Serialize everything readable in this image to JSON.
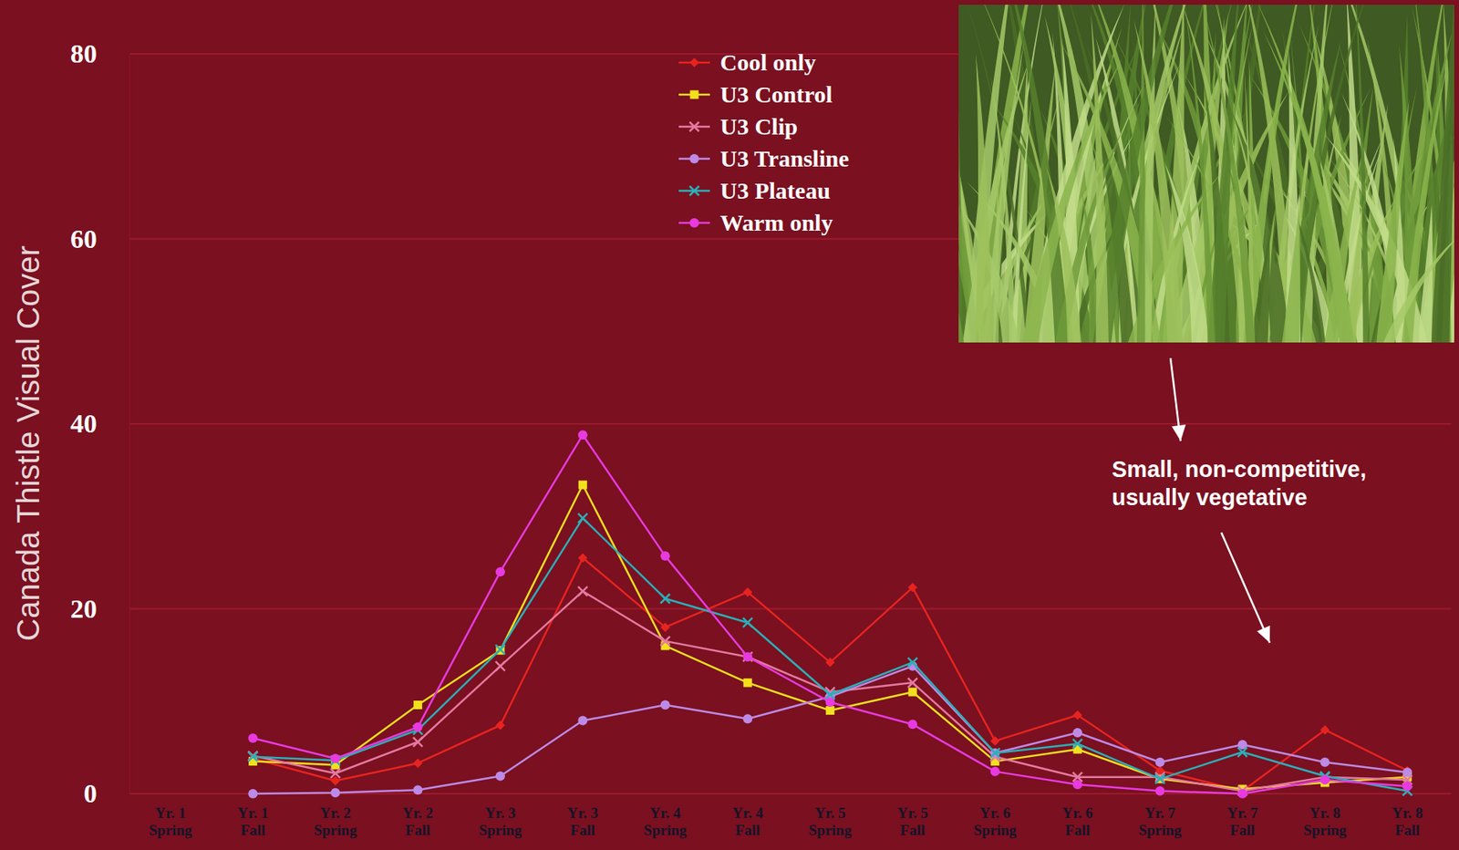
{
  "chart_data": {
    "type": "line",
    "y_label": "Canada Thistle Visual Cover",
    "annotation": "Small, non-competitive, usually vegetative",
    "categories": [
      "Yr. 1 Spring",
      "Yr. 1 Fall",
      "Yr. 2 Spring",
      "Yr. 2 Fall",
      "Yr. 3 Spring",
      "Yr. 3 Fall",
      "Yr. 4 Spring",
      "Yr. 4 Fall",
      "Yr. 5 Spring",
      "Yr. 5 Fall",
      "Yr. 6 Spring",
      "Yr. 6 Fall",
      "Yr. 7 Spring",
      "Yr. 7 Fall",
      "Yr. 8 Spring",
      "Yr. 8 Fall"
    ],
    "series": [
      {
        "name": "Cool only",
        "color": "#e8231f",
        "marker": "diamond",
        "values": [
          null,
          3.8,
          1.4,
          3.3,
          7.4,
          25.5,
          18,
          21.8,
          14.2,
          22.3,
          5.7,
          8.5,
          2.5,
          0.3,
          6.9,
          2.5
        ]
      },
      {
        "name": "U3 Control",
        "color": "#f2e01c",
        "marker": "square",
        "values": [
          null,
          3.5,
          3.1,
          9.6,
          15.5,
          33.4,
          16,
          12,
          9,
          11,
          3.5,
          4.8,
          1.6,
          0.5,
          1.2,
          1.8
        ]
      },
      {
        "name": "U3 Clip",
        "color": "#e47aa0",
        "marker": "x",
        "values": [
          null,
          4.1,
          2.2,
          5.6,
          13.8,
          21.9,
          16.5,
          14.8,
          11,
          12,
          4,
          1.8,
          1.8,
          0.3,
          1.8,
          1.5
        ]
      },
      {
        "name": "U3 Transline",
        "color": "#bd8ae6",
        "marker": "circle",
        "values": [
          null,
          0,
          0.1,
          0.4,
          1.9,
          7.9,
          9.6,
          8.1,
          10.5,
          13.8,
          4.4,
          6.6,
          3.4,
          5.3,
          3.4,
          2.3
        ]
      },
      {
        "name": "U3 Plateau",
        "color": "#2ab0b8",
        "marker": "x",
        "values": [
          null,
          4,
          3.6,
          6.9,
          15.6,
          29.8,
          21.1,
          18.5,
          10.7,
          14.2,
          4.4,
          5.4,
          1.6,
          4.5,
          1.9,
          0.3
        ]
      },
      {
        "name": "Warm only",
        "color": "#e83ae0",
        "marker": "circle",
        "values": [
          null,
          6,
          3.8,
          7.2,
          24,
          38.8,
          25.7,
          14.8,
          9.9,
          7.5,
          2.4,
          1,
          0.3,
          0,
          1.5,
          0.8
        ]
      }
    ],
    "ylim": [
      0,
      80
    ],
    "yticks": [
      0,
      20,
      40,
      60,
      80
    ],
    "grid": true,
    "legend": "top"
  }
}
